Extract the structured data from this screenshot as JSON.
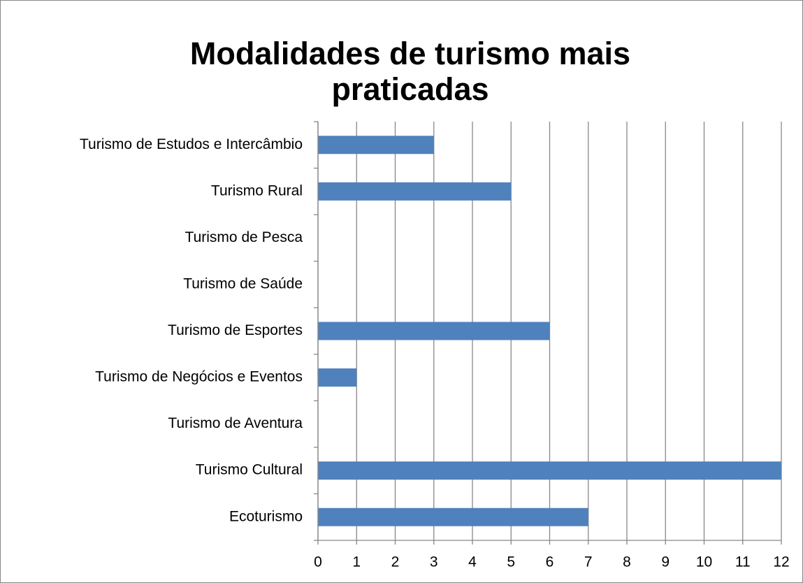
{
  "chart_data": {
    "type": "bar",
    "orientation": "horizontal",
    "title": [
      "Modalidades de turismo mais",
      "praticadas"
    ],
    "categories": [
      "Ecoturismo",
      "Turismo Cultural",
      "Turismo de Aventura",
      "Turismo de Negócios e Eventos",
      "Turismo de Esportes",
      "Turismo de Saúde",
      "Turismo de Pesca",
      "Turismo Rural",
      "Turismo de Estudos e Intercâmbio"
    ],
    "values": [
      7,
      12,
      0,
      1,
      6,
      0,
      0,
      5,
      3
    ],
    "color": "#4f81bd",
    "xlim": [
      0,
      12
    ],
    "xticks": [
      0,
      1,
      2,
      3,
      4,
      5,
      6,
      7,
      8,
      9,
      10,
      11,
      12
    ],
    "grid": true
  }
}
